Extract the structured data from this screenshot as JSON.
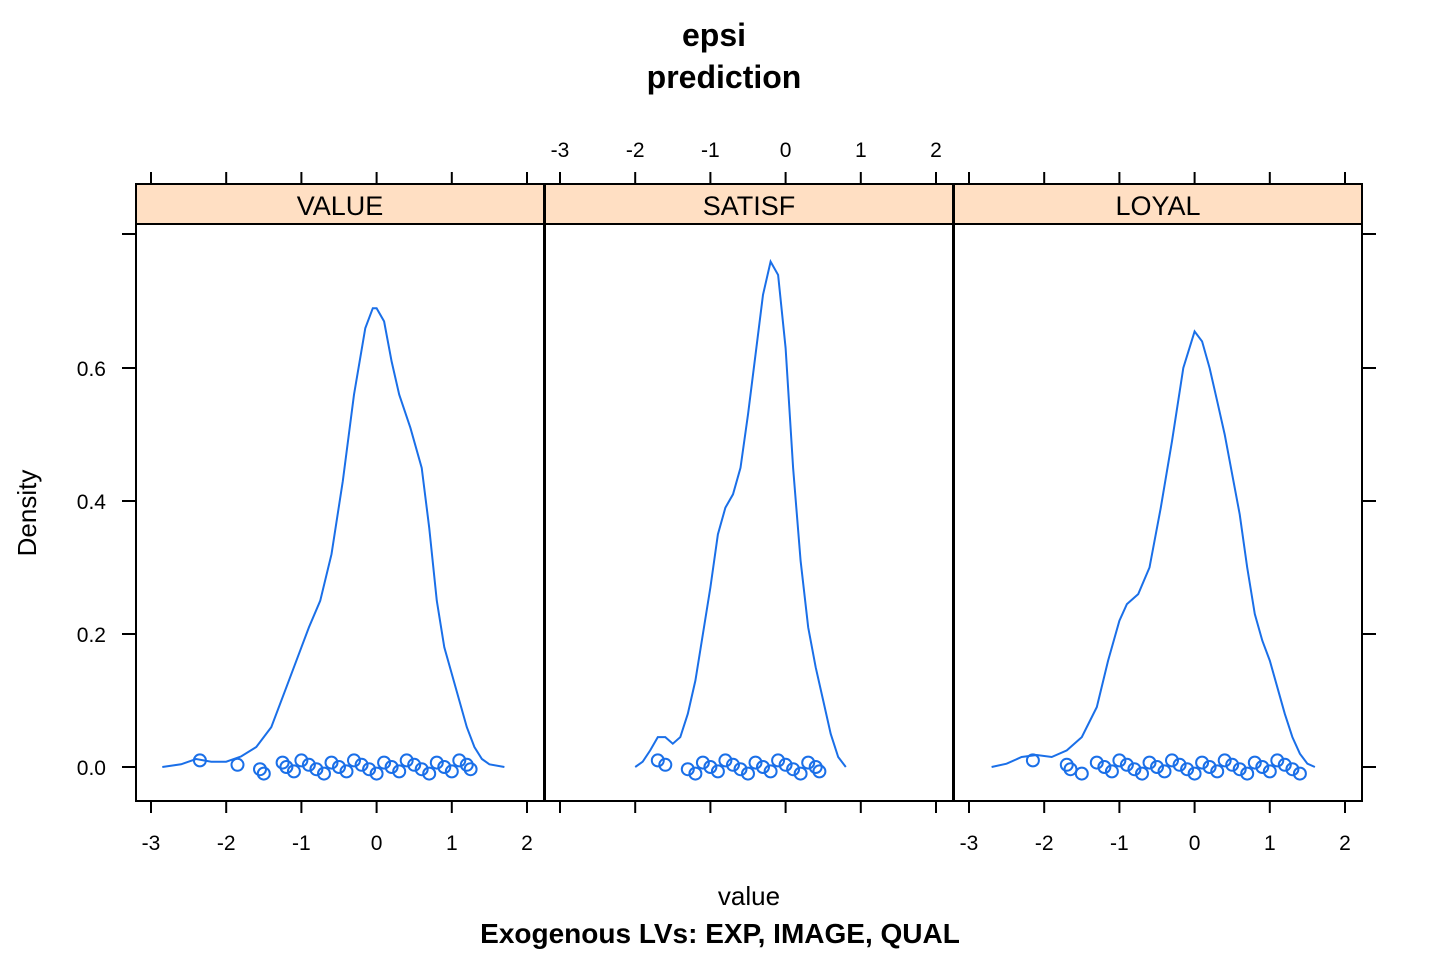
{
  "chart_data": {
    "type": "density",
    "title": "epsi",
    "subtitle": "prediction",
    "xlabel": "value",
    "ylabel": "Density",
    "sub_caption": "Exogenous LVs:  EXP, IMAGE, QUAL",
    "xlim": [
      -3.0,
      2.0
    ],
    "ylim": [
      0,
      0.8
    ],
    "x_ticks": [
      -3,
      -2,
      -1,
      0,
      1,
      2
    ],
    "y_ticks": [
      0.0,
      0.2,
      0.4,
      0.6
    ],
    "x_tick_labels": [
      "-3",
      "-2",
      "-1",
      "0",
      "1",
      "2"
    ],
    "y_tick_labels": [
      "0.0",
      "0.2",
      "0.4",
      "0.6"
    ],
    "line_color": "#1a6fe8",
    "strip_color": "#ffdfc3",
    "panels": [
      {
        "name": "VALUE",
        "density": [
          [
            -2.85,
            0.0
          ],
          [
            -2.6,
            0.004
          ],
          [
            -2.4,
            0.012
          ],
          [
            -2.2,
            0.008
          ],
          [
            -2.0,
            0.008
          ],
          [
            -1.8,
            0.016
          ],
          [
            -1.6,
            0.03
          ],
          [
            -1.4,
            0.06
          ],
          [
            -1.2,
            0.12
          ],
          [
            -1.0,
            0.18
          ],
          [
            -0.9,
            0.21
          ],
          [
            -0.75,
            0.25
          ],
          [
            -0.6,
            0.32
          ],
          [
            -0.45,
            0.43
          ],
          [
            -0.3,
            0.56
          ],
          [
            -0.15,
            0.66
          ],
          [
            -0.05,
            0.69
          ],
          [
            0.0,
            0.69
          ],
          [
            0.1,
            0.67
          ],
          [
            0.2,
            0.61
          ],
          [
            0.3,
            0.56
          ],
          [
            0.45,
            0.51
          ],
          [
            0.6,
            0.45
          ],
          [
            0.7,
            0.36
          ],
          [
            0.8,
            0.25
          ],
          [
            0.9,
            0.18
          ],
          [
            1.0,
            0.14
          ],
          [
            1.1,
            0.1
          ],
          [
            1.2,
            0.06
          ],
          [
            1.3,
            0.03
          ],
          [
            1.4,
            0.012
          ],
          [
            1.5,
            0.004
          ],
          [
            1.7,
            0.0
          ]
        ],
        "points": [
          -2.35,
          -1.85,
          -1.55,
          -1.5,
          -1.25,
          -1.2,
          -1.1,
          -1.0,
          -0.9,
          -0.8,
          -0.7,
          -0.6,
          -0.5,
          -0.4,
          -0.3,
          -0.2,
          -0.1,
          0.0,
          0.1,
          0.2,
          0.3,
          0.4,
          0.5,
          0.6,
          0.7,
          0.8,
          0.9,
          1.0,
          1.1,
          1.2,
          1.25
        ]
      },
      {
        "name": "SATISF",
        "density": [
          [
            -2.0,
            0.0
          ],
          [
            -1.9,
            0.008
          ],
          [
            -1.8,
            0.025
          ],
          [
            -1.7,
            0.045
          ],
          [
            -1.6,
            0.045
          ],
          [
            -1.5,
            0.035
          ],
          [
            -1.4,
            0.045
          ],
          [
            -1.3,
            0.08
          ],
          [
            -1.2,
            0.13
          ],
          [
            -1.1,
            0.2
          ],
          [
            -1.0,
            0.27
          ],
          [
            -0.9,
            0.35
          ],
          [
            -0.8,
            0.39
          ],
          [
            -0.7,
            0.41
          ],
          [
            -0.6,
            0.45
          ],
          [
            -0.5,
            0.53
          ],
          [
            -0.4,
            0.62
          ],
          [
            -0.3,
            0.71
          ],
          [
            -0.2,
            0.76
          ],
          [
            -0.1,
            0.74
          ],
          [
            0.0,
            0.63
          ],
          [
            0.1,
            0.45
          ],
          [
            0.2,
            0.31
          ],
          [
            0.3,
            0.21
          ],
          [
            0.4,
            0.15
          ],
          [
            0.5,
            0.1
          ],
          [
            0.6,
            0.05
          ],
          [
            0.7,
            0.015
          ],
          [
            0.8,
            0.0
          ]
        ],
        "points": [
          -1.7,
          -1.6,
          -1.3,
          -1.2,
          -1.1,
          -1.0,
          -0.9,
          -0.8,
          -0.7,
          -0.6,
          -0.5,
          -0.4,
          -0.3,
          -0.2,
          -0.1,
          0.0,
          0.1,
          0.2,
          0.3,
          0.4,
          0.45
        ]
      },
      {
        "name": "LOYAL",
        "density": [
          [
            -2.7,
            0.0
          ],
          [
            -2.5,
            0.005
          ],
          [
            -2.3,
            0.015
          ],
          [
            -2.1,
            0.018
          ],
          [
            -1.9,
            0.015
          ],
          [
            -1.7,
            0.025
          ],
          [
            -1.5,
            0.045
          ],
          [
            -1.3,
            0.09
          ],
          [
            -1.15,
            0.16
          ],
          [
            -1.0,
            0.22
          ],
          [
            -0.9,
            0.245
          ],
          [
            -0.75,
            0.26
          ],
          [
            -0.6,
            0.3
          ],
          [
            -0.45,
            0.39
          ],
          [
            -0.3,
            0.49
          ],
          [
            -0.15,
            0.6
          ],
          [
            0.0,
            0.655
          ],
          [
            0.1,
            0.64
          ],
          [
            0.2,
            0.6
          ],
          [
            0.3,
            0.55
          ],
          [
            0.4,
            0.5
          ],
          [
            0.5,
            0.44
          ],
          [
            0.6,
            0.38
          ],
          [
            0.7,
            0.3
          ],
          [
            0.8,
            0.23
          ],
          [
            0.9,
            0.19
          ],
          [
            1.0,
            0.16
          ],
          [
            1.1,
            0.12
          ],
          [
            1.2,
            0.08
          ],
          [
            1.3,
            0.045
          ],
          [
            1.4,
            0.02
          ],
          [
            1.5,
            0.005
          ],
          [
            1.6,
            0.0
          ]
        ],
        "points": [
          -2.15,
          -1.7,
          -1.65,
          -1.5,
          -1.3,
          -1.2,
          -1.1,
          -1.0,
          -0.9,
          -0.8,
          -0.7,
          -0.6,
          -0.5,
          -0.4,
          -0.3,
          -0.2,
          -0.1,
          0.0,
          0.1,
          0.2,
          0.3,
          0.4,
          0.5,
          0.6,
          0.7,
          0.8,
          0.9,
          1.0,
          1.1,
          1.2,
          1.3,
          1.4
        ]
      }
    ]
  }
}
